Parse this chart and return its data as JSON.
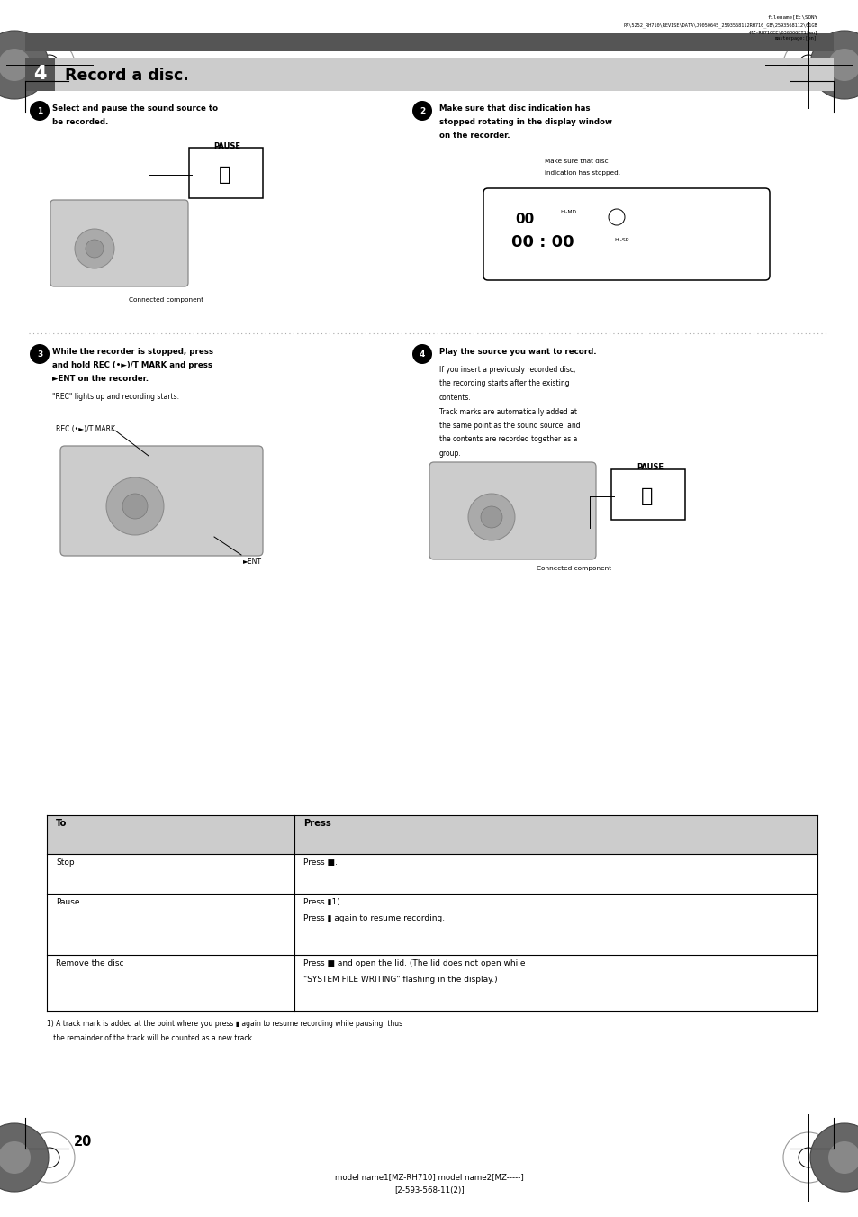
{
  "page_width": 9.54,
  "page_height": 13.51,
  "bg_color": "#ffffff",
  "title_num": "4",
  "title_text": "Record a disc.",
  "step1_text_l1": "Select and pause the sound source to",
  "step1_text_l2": "be recorded.",
  "step1_pause": "PAUSE",
  "step1_label": "Connected component",
  "step2_text_l1": "Make sure that disc indication has",
  "step2_text_l2": "stopped rotating in the display window",
  "step2_text_l3": "on the recorder.",
  "step2_sublabel_l1": "Make sure that disc",
  "step2_sublabel_l2": "indication has stopped.",
  "step3_text_l1": "While the recorder is stopped, press",
  "step3_text_l2": "and hold REC (•►)/T MARK and press",
  "step3_text_l3": "►ENT on the recorder.",
  "step3_sub": "\"REC\" lights up and recording starts.",
  "step3_label1": "REC (•►)/T MARK",
  "step3_label2": "►ENT",
  "step4_text": "Play the source you want to record.",
  "step4_body_l1": "If you insert a previously recorded disc,",
  "step4_body_l2": "the recording starts after the existing",
  "step4_body_l3": "contents.",
  "step4_body_l4": "Track marks are automatically added at",
  "step4_body_l5": "the same point as the sound source, and",
  "step4_body_l6": "the contents are recorded together as a",
  "step4_body_l7": "group.",
  "step4_pause": "PAUSE",
  "step4_label": "Connected component",
  "table_col1_header": "To",
  "table_col2_header": "Press",
  "row1_col1": "Stop",
  "row1_col2": "Press ■.",
  "row2_col1": "Pause",
  "row2_col2_l1": "Press ▮1).",
  "row2_col2_l2": "Press ▮ again to resume recording.",
  "row3_col1": "Remove the disc",
  "row3_col2_l1": "Press ■ and open the lid. (The lid does not open while",
  "row3_col2_l2": "\"SYSTEM FILE WRITING\" flashing in the display.)",
  "footnote_l1": "1) A track mark is added at the point where you press ▮ again to resume recording while pausing; thus",
  "footnote_l2": "   the remainder of the track will be counted as a new track.",
  "page_num": "20",
  "footer_model": "model name1[MZ-RH710] model name2[MZ-----]",
  "footer_code": "[2-593-568-11(2)]",
  "gray_bar_color": "#555555",
  "table_header_bg": "#cccccc",
  "dotted_line_color": "#aaaaaa"
}
